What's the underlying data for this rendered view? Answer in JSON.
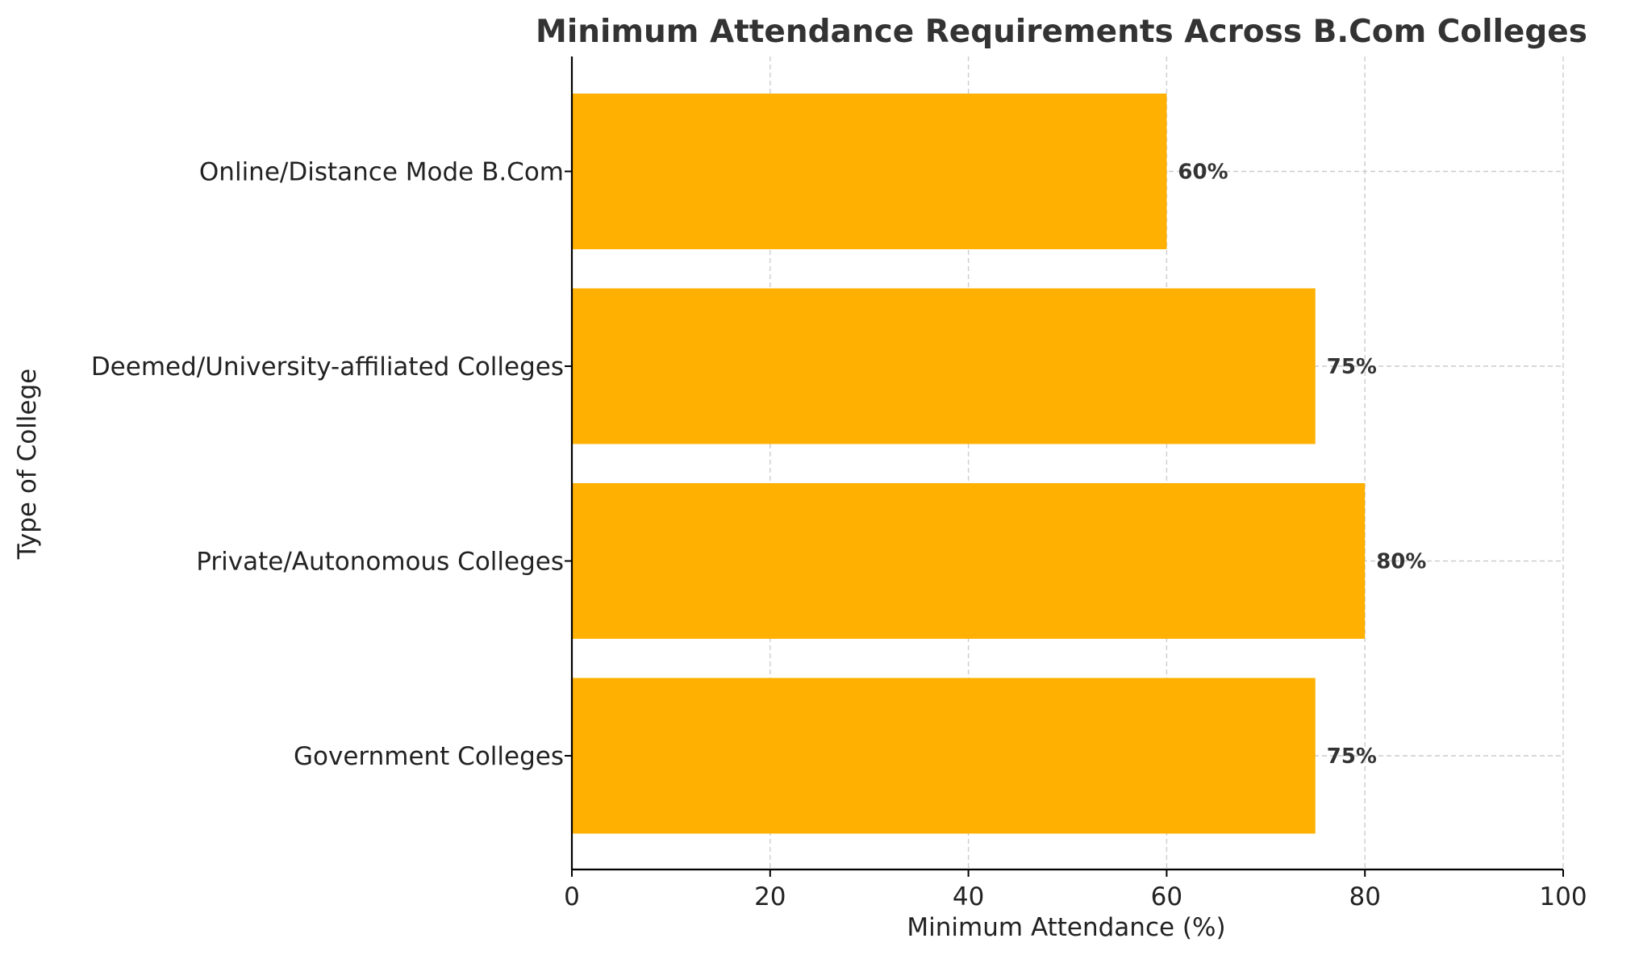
{
  "chart_data": {
    "type": "bar",
    "orientation": "horizontal",
    "title": "Minimum Attendance Requirements Across B.Com Colleges",
    "xlabel": "Minimum Attendance (%)",
    "ylabel": "Type of College",
    "categories": [
      "Government Colleges",
      "Private/Autonomous Colleges",
      "Deemed/University-affiliated Colleges",
      "Online/Distance Mode B.Com"
    ],
    "values": [
      75,
      80,
      75,
      60
    ],
    "data_labels": [
      "75%",
      "80%",
      "75%",
      "60%"
    ],
    "xlim": [
      0,
      100
    ],
    "xticks": [
      0,
      20,
      40,
      60,
      80,
      100
    ],
    "xtick_labels": [
      "0",
      "20",
      "40",
      "60",
      "80",
      "100"
    ],
    "grid": true,
    "bar_color": "#FFB000"
  }
}
